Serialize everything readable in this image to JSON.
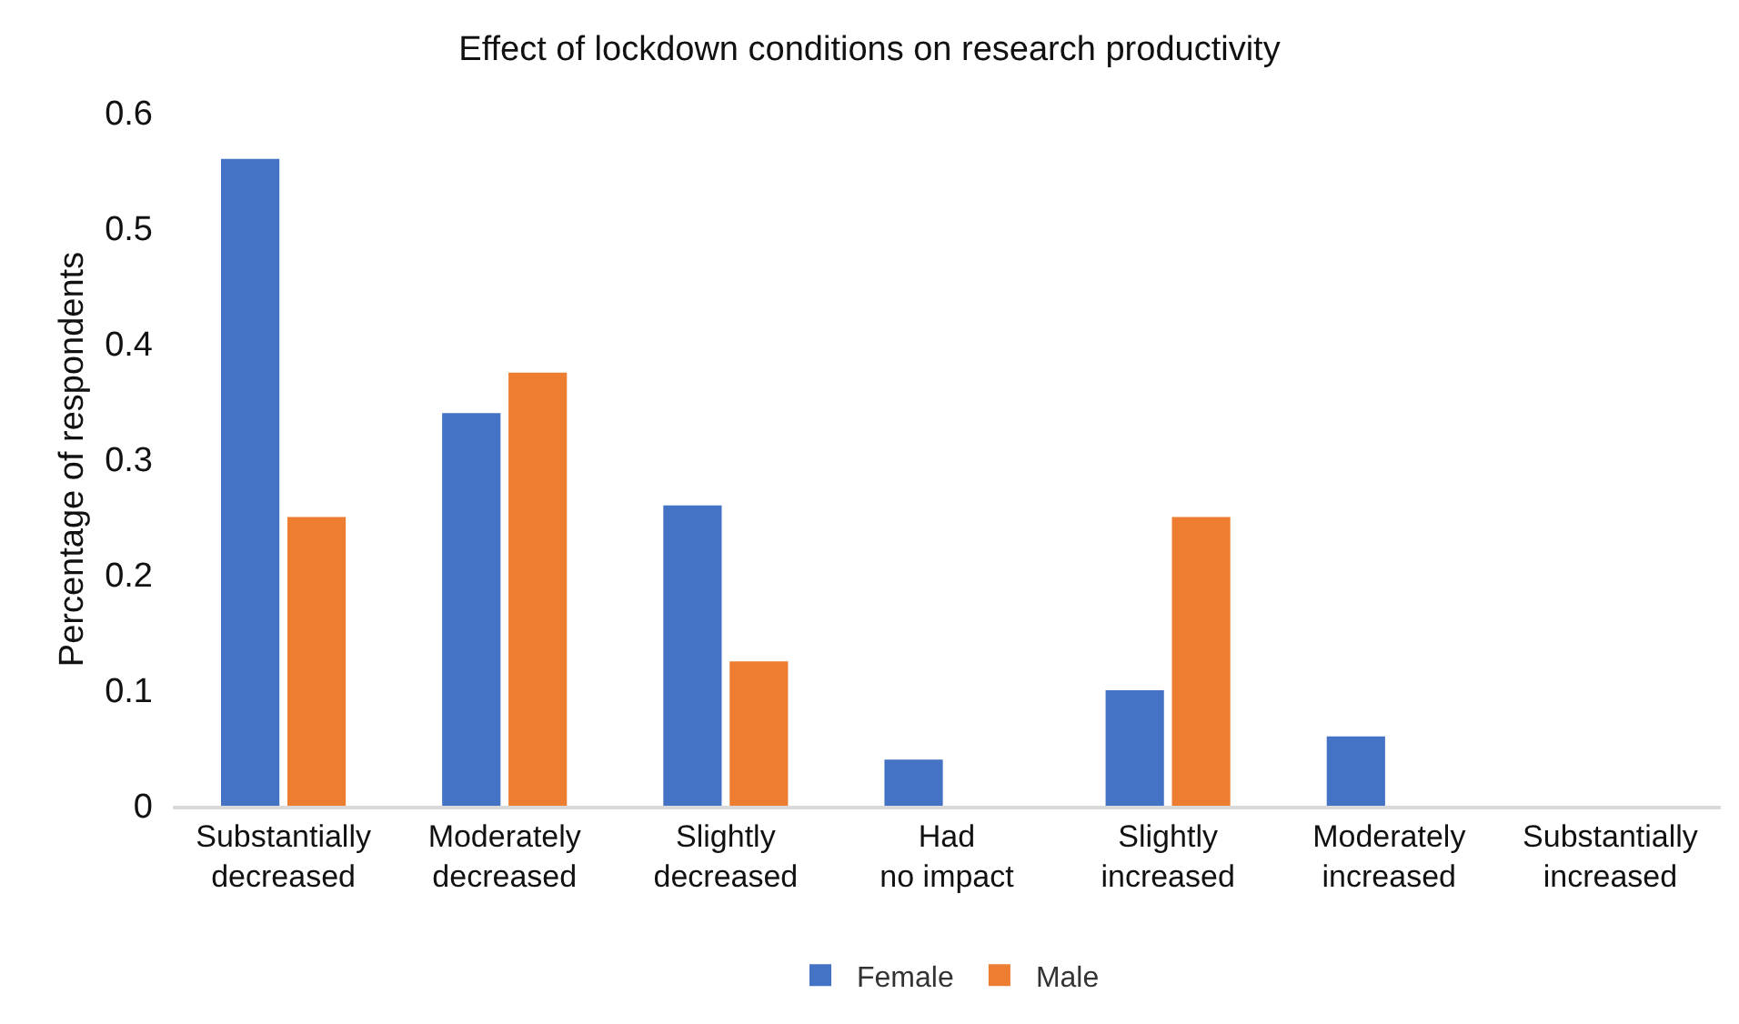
{
  "chart_data": {
    "type": "bar",
    "title": "Effect of lockdown conditions on research productivity",
    "ylabel": "Percentage of respondents",
    "categories": [
      "Substantially decreased",
      "Moderately decreased",
      "Slightly decreased",
      "Had no impact",
      "Slightly increased",
      "Moderately increased",
      "Substantially increased"
    ],
    "series": [
      {
        "name": "Female",
        "color": "#4472c4",
        "values": [
          0.56,
          0.34,
          0.26,
          0.04,
          0.1,
          0.06,
          0
        ]
      },
      {
        "name": "Male",
        "color": "#ed7d31",
        "values": [
          0.25,
          0.375,
          0.125,
          0,
          0.25,
          0,
          0
        ]
      }
    ],
    "ylim": [
      0,
      0.6
    ],
    "yticks": [
      0,
      0.1,
      0.2,
      0.3,
      0.4,
      0.5,
      0.6
    ],
    "grid": false,
    "legend": "bottom"
  }
}
